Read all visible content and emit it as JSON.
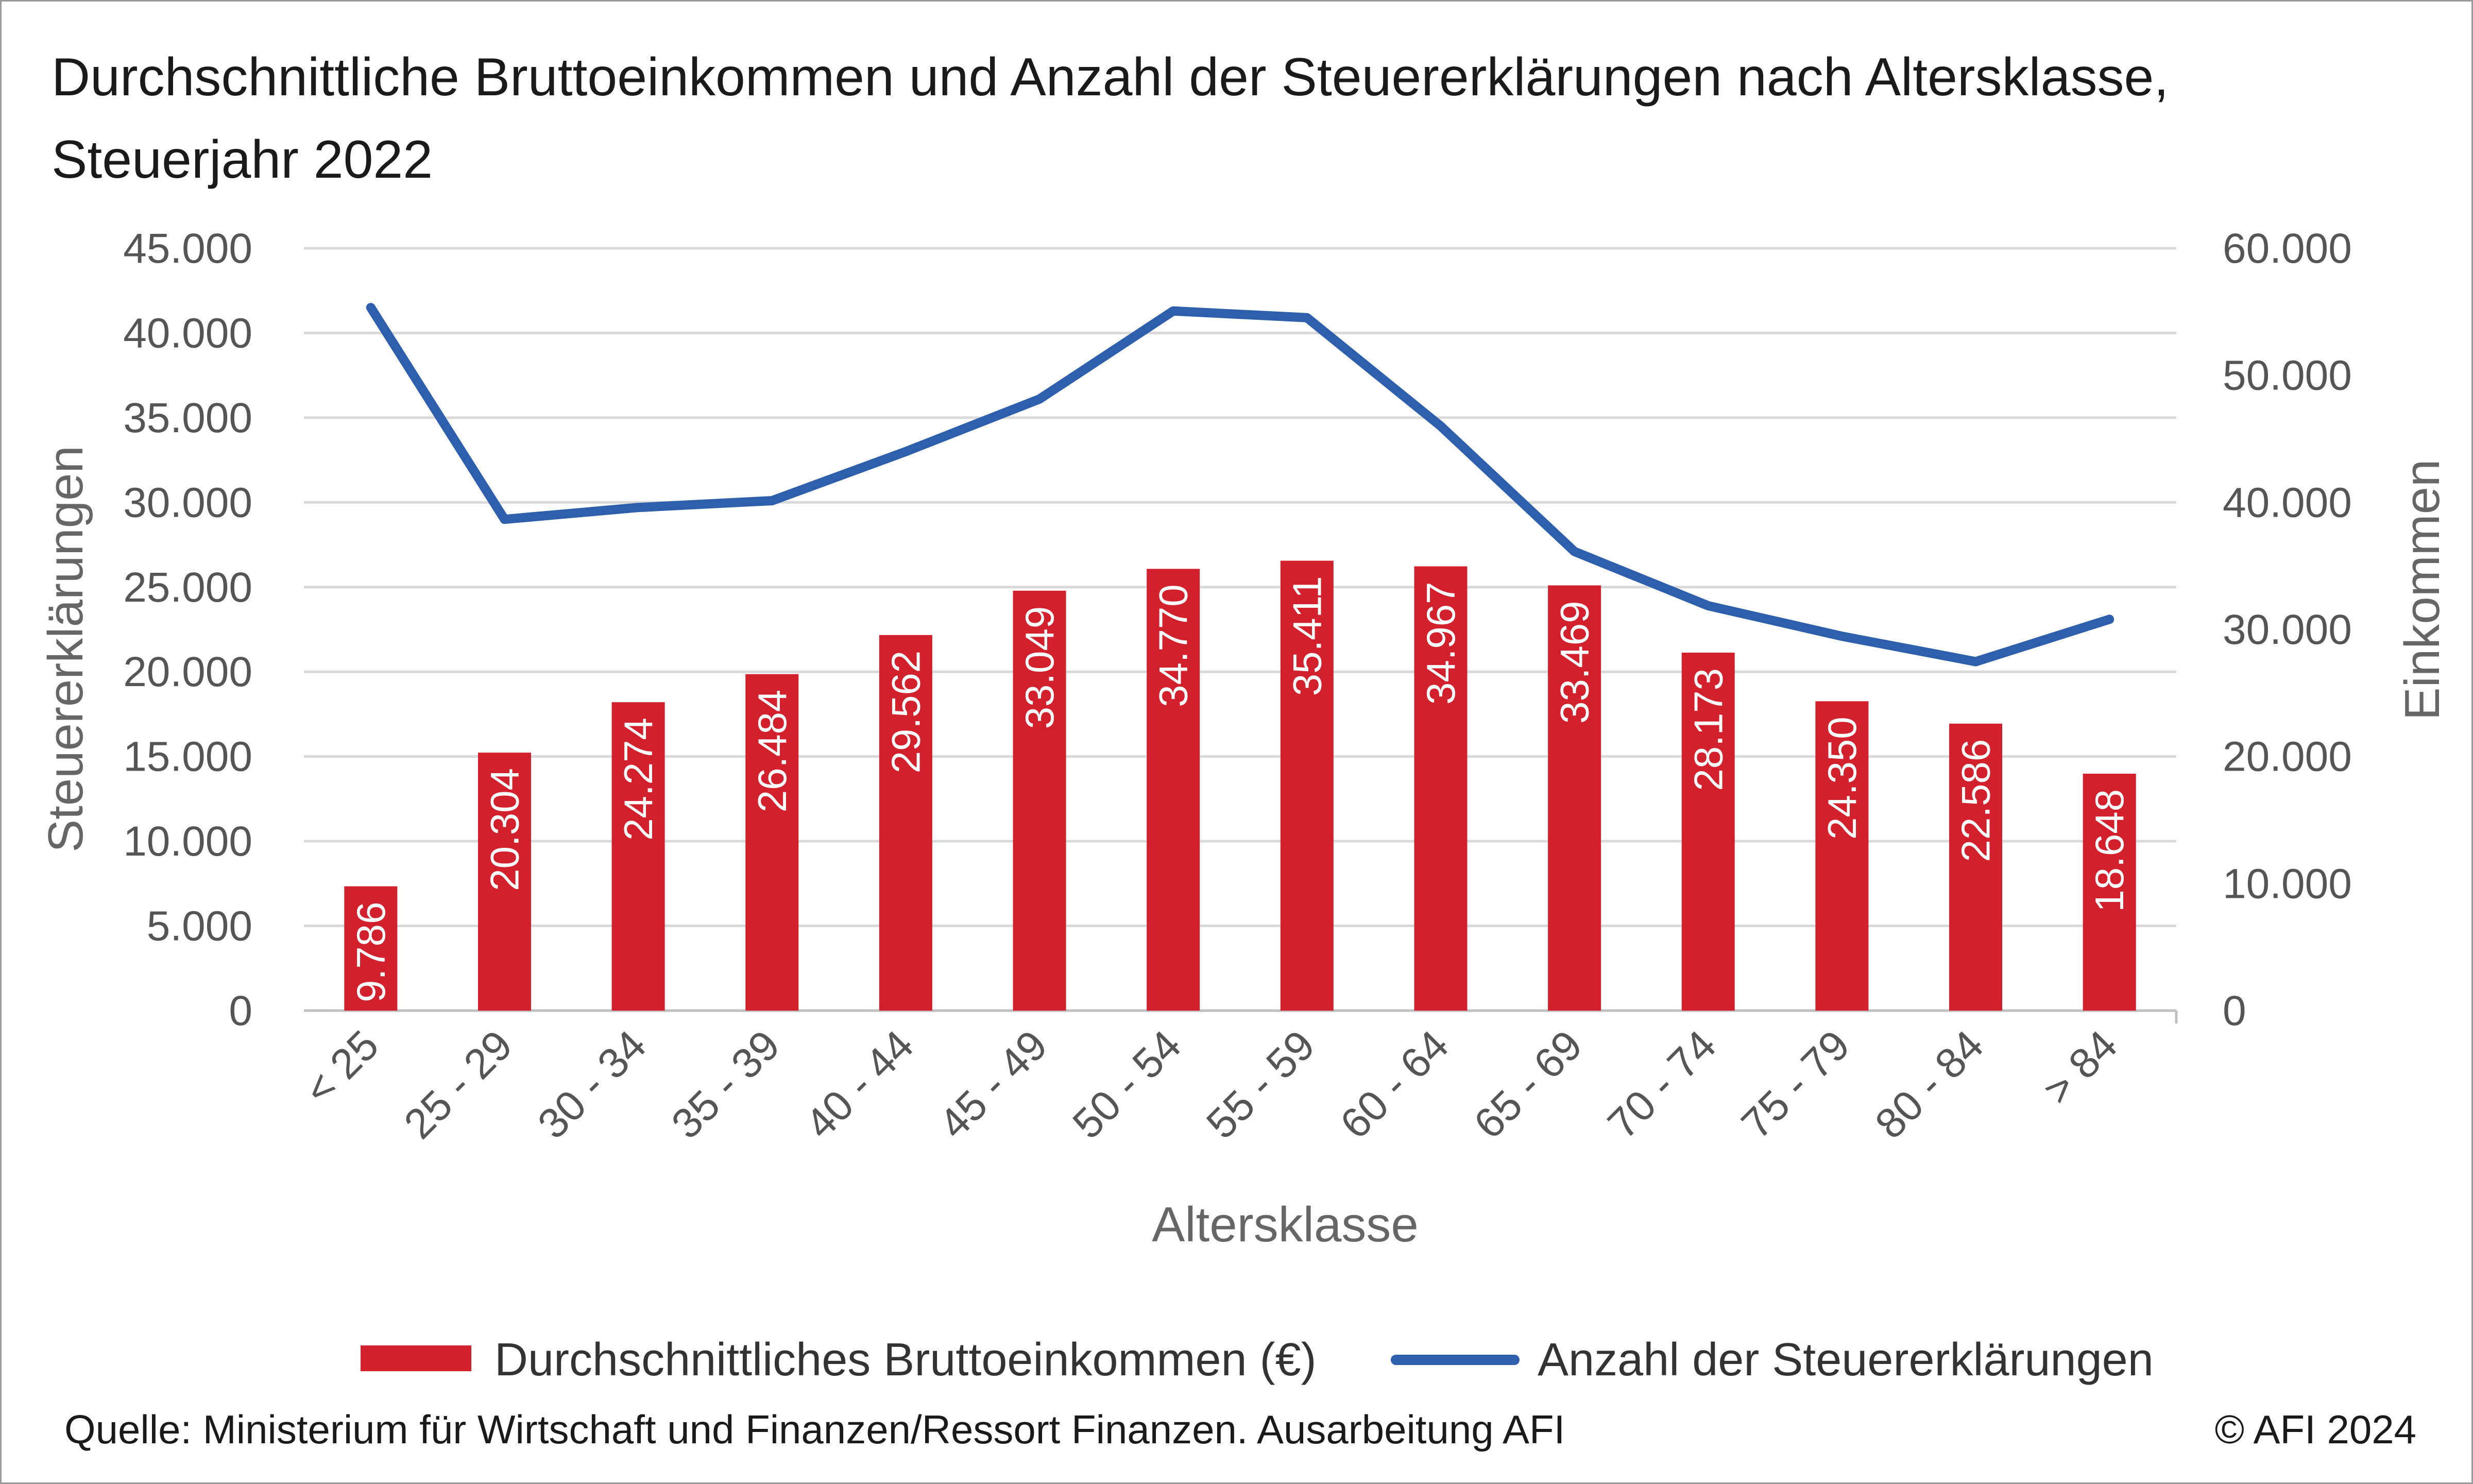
{
  "title": "Durchschnittliche Bruttoeinkommen und Anzahl der Steuererklärungen nach Altersklasse, Steuerjahr 2022",
  "source": "Quelle: Ministerium für Wirtschaft und Finanzen/Ressort Finanzen. Ausarbeitung AFI",
  "copyright": "© AFI 2024",
  "colors": {
    "bar": "#D2202D",
    "line": "#2E5FAD",
    "grid": "#d9d9d9",
    "axis": "#bfbfbf"
  },
  "chart_data": {
    "type": "bar+line",
    "xlabel": "Altersklasse",
    "ylabel_left": "Steuererklärungen",
    "ylabel_right": "Einkommen",
    "categories": [
      "< 25",
      "25 - 29",
      "30 - 34",
      "35 - 39",
      "40 - 44",
      "45 - 49",
      "50 - 54",
      "55 - 59",
      "60 - 64",
      "65 - 69",
      "70 - 74",
      "75 - 79",
      "80 - 84",
      "> 84"
    ],
    "left_axis": {
      "min": 0,
      "max": 45000,
      "ticks": [
        "0",
        "5.000",
        "10.000",
        "15.000",
        "20.000",
        "25.000",
        "30.000",
        "35.000",
        "40.000",
        "45.000"
      ]
    },
    "right_axis": {
      "min": 0,
      "max": 60000,
      "ticks": [
        "0",
        "10.000",
        "20.000",
        "30.000",
        "40.000",
        "50.000",
        "60.000"
      ]
    },
    "series": [
      {
        "name": "Durchschnittliches Bruttoeinkommen (€)",
        "type": "bar",
        "axis": "right",
        "values": [
          9786,
          20304,
          24274,
          26484,
          29562,
          33049,
          34770,
          35411,
          34967,
          33469,
          28173,
          24350,
          22586,
          18648
        ],
        "labels": [
          "9.786",
          "20.304",
          "24.274",
          "26.484",
          "29.562",
          "33.049",
          "34.770",
          "35.411",
          "34.967",
          "33.469",
          "28.173",
          "24.350",
          "22.586",
          "18.648"
        ]
      },
      {
        "name": "Anzahl der Steuererklärungen",
        "type": "line",
        "axis": "left",
        "values": [
          41500,
          29000,
          29700,
          30100,
          33000,
          36100,
          41300,
          40900,
          34500,
          27100,
          23900,
          22100,
          20600,
          23100
        ]
      }
    ],
    "grid": true,
    "legend_position": "bottom"
  }
}
